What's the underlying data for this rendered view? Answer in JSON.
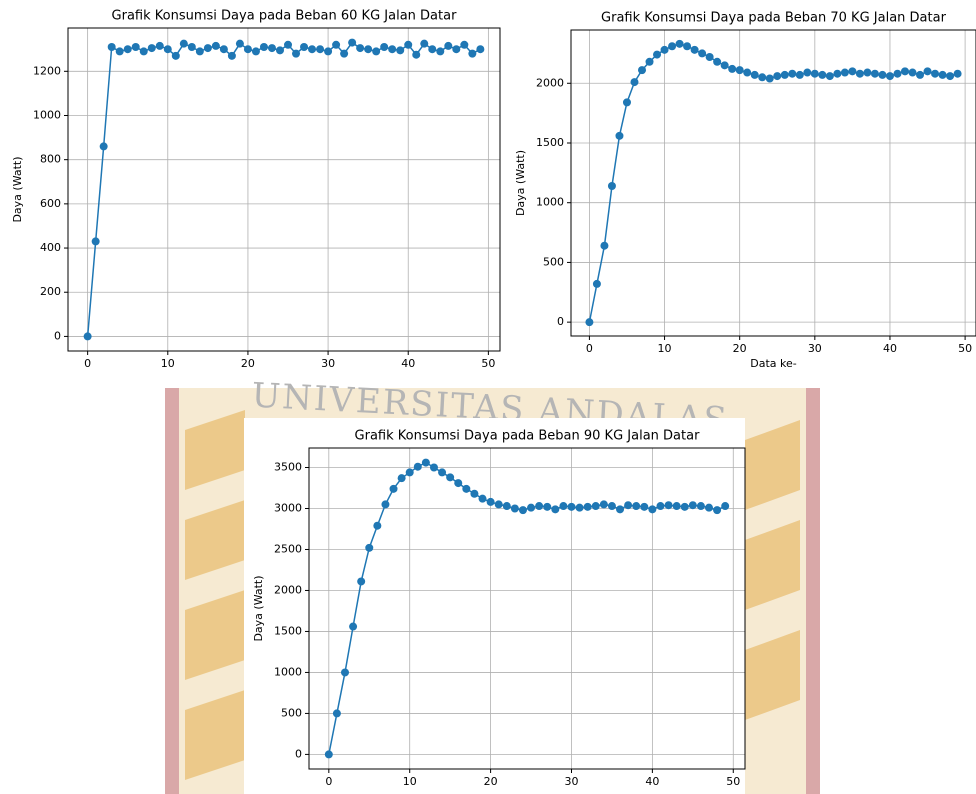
{
  "watermark": "UNIVERSITAS ANDALAS",
  "chart_data": [
    {
      "type": "line",
      "title": "Grafik Konsumsi Daya pada Beban 60 KG Jalan Datar",
      "y_label": "Daya (Watt)",
      "grid": true,
      "color": "#1f77b4",
      "x": [
        0,
        1,
        2,
        3,
        4,
        5,
        6,
        7,
        8,
        9,
        10,
        11,
        12,
        13,
        14,
        15,
        16,
        17,
        18,
        19,
        20,
        21,
        22,
        23,
        24,
        25,
        26,
        27,
        28,
        29,
        30,
        31,
        32,
        33,
        34,
        35,
        36,
        37,
        38,
        39,
        40,
        41,
        42,
        43,
        44,
        45,
        46,
        47,
        48,
        49
      ],
      "values": [
        0,
        430,
        860,
        1310,
        1290,
        1300,
        1310,
        1290,
        1305,
        1315,
        1300,
        1270,
        1325,
        1310,
        1290,
        1305,
        1315,
        1300,
        1270,
        1325,
        1300,
        1290,
        1310,
        1305,
        1295,
        1320,
        1280,
        1310,
        1300,
        1300,
        1290,
        1320,
        1280,
        1330,
        1305,
        1300,
        1290,
        1310,
        1300,
        1295,
        1320,
        1275,
        1325,
        1300,
        1290,
        1315,
        1300,
        1320,
        1280,
        1300
      ],
      "xlim": [
        -2.45,
        51.45
      ],
      "xticks": [
        0,
        10,
        20,
        30,
        40,
        50
      ],
      "ylim": [
        -66,
        1396
      ],
      "yticks": [
        0,
        200,
        400,
        600,
        800,
        1000,
        1200
      ]
    },
    {
      "type": "line",
      "title": "Grafik Konsumsi Daya pada Beban 70 KG Jalan Datar",
      "x_label": "Data ke-",
      "y_label": "Daya (Watt)",
      "grid": true,
      "color": "#1f77b4",
      "x": [
        0,
        1,
        2,
        3,
        4,
        5,
        6,
        7,
        8,
        9,
        10,
        11,
        12,
        13,
        14,
        15,
        16,
        17,
        18,
        19,
        20,
        21,
        22,
        23,
        24,
        25,
        26,
        27,
        28,
        29,
        30,
        31,
        32,
        33,
        34,
        35,
        36,
        37,
        38,
        39,
        40,
        41,
        42,
        43,
        44,
        45,
        46,
        47,
        48,
        49
      ],
      "values": [
        0,
        320,
        640,
        1140,
        1560,
        1840,
        2010,
        2110,
        2180,
        2240,
        2280,
        2310,
        2330,
        2310,
        2280,
        2250,
        2220,
        2180,
        2150,
        2120,
        2110,
        2090,
        2070,
        2050,
        2040,
        2060,
        2070,
        2080,
        2070,
        2090,
        2080,
        2070,
        2060,
        2080,
        2090,
        2100,
        2080,
        2090,
        2080,
        2070,
        2060,
        2080,
        2100,
        2090,
        2070,
        2100,
        2080,
        2070,
        2060,
        2080
      ],
      "xlim": [
        -2.45,
        51.45
      ],
      "xticks": [
        0,
        10,
        20,
        30,
        40,
        50
      ],
      "ylim": [
        -116,
        2446
      ],
      "yticks": [
        0,
        500,
        1000,
        1500,
        2000
      ]
    },
    {
      "type": "line",
      "title": "Grafik Konsumsi Daya pada Beban 90 KG Jalan Datar",
      "y_label": "Daya (Watt)",
      "grid": true,
      "color": "#1f77b4",
      "x": [
        0,
        1,
        2,
        3,
        4,
        5,
        6,
        7,
        8,
        9,
        10,
        11,
        12,
        13,
        14,
        15,
        16,
        17,
        18,
        19,
        20,
        21,
        22,
        23,
        24,
        25,
        26,
        27,
        28,
        29,
        30,
        31,
        32,
        33,
        34,
        35,
        36,
        37,
        38,
        39,
        40,
        41,
        42,
        43,
        44,
        45,
        46,
        47,
        48,
        49
      ],
      "values": [
        0,
        500,
        1000,
        1560,
        2110,
        2520,
        2790,
        3050,
        3240,
        3370,
        3440,
        3510,
        3560,
        3500,
        3440,
        3380,
        3310,
        3240,
        3180,
        3120,
        3080,
        3050,
        3030,
        3000,
        2980,
        3010,
        3030,
        3020,
        2990,
        3030,
        3020,
        3010,
        3020,
        3030,
        3050,
        3030,
        2990,
        3040,
        3030,
        3020,
        2990,
        3030,
        3040,
        3030,
        3020,
        3040,
        3030,
        3010,
        2980,
        3030
      ],
      "xlim": [
        -2.45,
        51.45
      ],
      "xticks": [
        0,
        10,
        20,
        30,
        40,
        50
      ],
      "ylim": [
        -178,
        3738
      ],
      "yticks": [
        0,
        500,
        1000,
        1500,
        2000,
        2500,
        3000,
        3500
      ]
    }
  ]
}
